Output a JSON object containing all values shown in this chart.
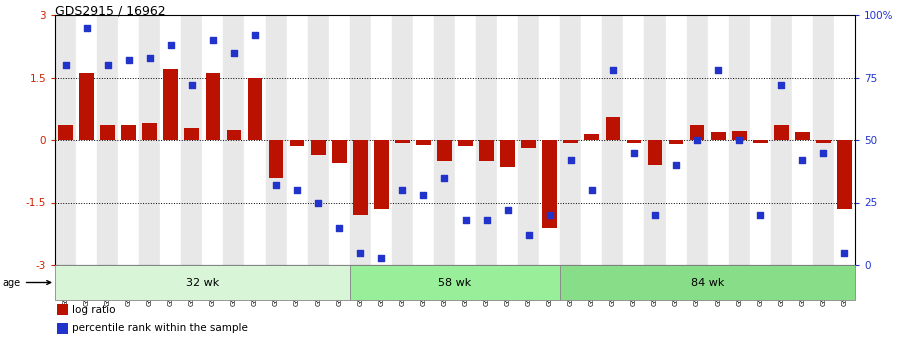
{
  "title": "GDS2915 / 16962",
  "samples": [
    "GSM97277",
    "GSM97278",
    "GSM97279",
    "GSM97280",
    "GSM97281",
    "GSM97282",
    "GSM97283",
    "GSM97284",
    "GSM97285",
    "GSM97286",
    "GSM97287",
    "GSM97288",
    "GSM97289",
    "GSM97290",
    "GSM97291",
    "GSM97292",
    "GSM97293",
    "GSM97294",
    "GSM97295",
    "GSM97296",
    "GSM97297",
    "GSM97298",
    "GSM97299",
    "GSM97300",
    "GSM97301",
    "GSM97302",
    "GSM97303",
    "GSM97304",
    "GSM97305",
    "GSM97306",
    "GSM97307",
    "GSM97308",
    "GSM97309",
    "GSM97310",
    "GSM97311",
    "GSM97312",
    "GSM97313",
    "GSM97314"
  ],
  "log_ratio": [
    0.35,
    1.6,
    0.35,
    0.35,
    0.4,
    1.7,
    0.28,
    1.6,
    0.25,
    1.5,
    -0.9,
    -0.15,
    -0.35,
    -0.55,
    -1.8,
    -1.65,
    -0.08,
    -0.12,
    -0.5,
    -0.15,
    -0.5,
    -0.65,
    -0.2,
    -2.1,
    -0.08,
    0.15,
    0.55,
    -0.08,
    -0.6,
    -0.1,
    0.35,
    0.2,
    0.22,
    -0.08,
    0.35,
    0.2,
    -0.08,
    -1.65
  ],
  "percentile": [
    80,
    95,
    80,
    82,
    83,
    88,
    72,
    90,
    85,
    92,
    32,
    30,
    25,
    15,
    5,
    3,
    30,
    28,
    35,
    18,
    18,
    22,
    12,
    20,
    42,
    30,
    78,
    45,
    20,
    40,
    50,
    78,
    50,
    20,
    72,
    42,
    45,
    5
  ],
  "groups": [
    {
      "label": "32 wk",
      "start": 0,
      "end": 14
    },
    {
      "label": "58 wk",
      "start": 14,
      "end": 24
    },
    {
      "label": "84 wk",
      "start": 24,
      "end": 38
    }
  ],
  "group_colors": [
    "#d8f5d8",
    "#99ee99",
    "#88dd88"
  ],
  "ylim": [
    -3,
    3
  ],
  "yticks_left": [
    -3,
    -1.5,
    0,
    1.5,
    3
  ],
  "yticks_right": [
    0,
    25,
    50,
    75,
    100
  ],
  "hlines": [
    -1.5,
    0,
    1.5
  ],
  "bar_color": "#bb1100",
  "dot_color": "#2233cc",
  "legend_log_ratio": "log ratio",
  "legend_percentile": "percentile rank within the sample",
  "age_label": "age"
}
